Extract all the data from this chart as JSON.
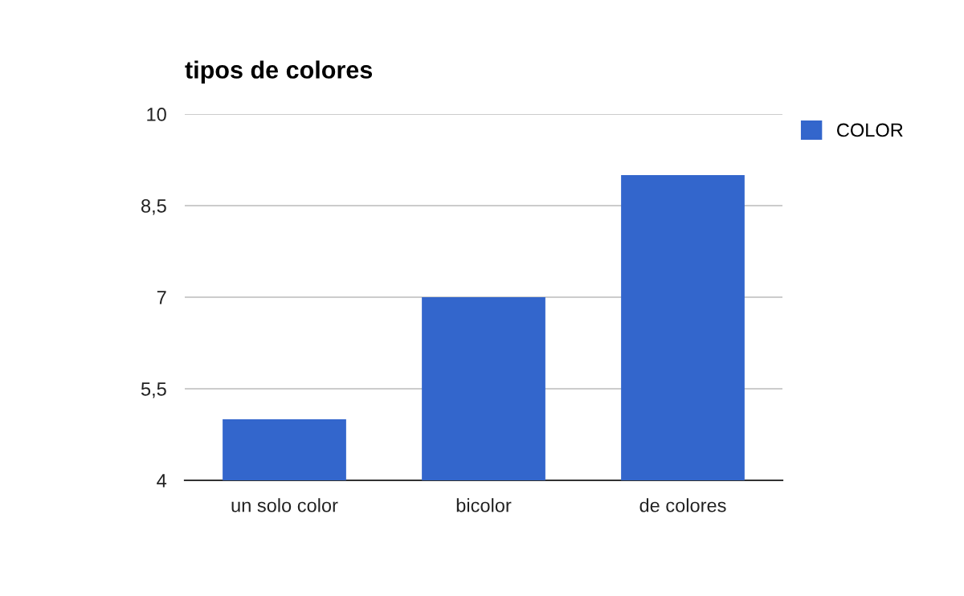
{
  "chart_data": {
    "type": "bar",
    "title": "tipos de colores",
    "categories": [
      "un solo color",
      "bicolor",
      "de colores"
    ],
    "series": [
      {
        "name": "COLOR",
        "color": "#3366cc",
        "values": [
          5,
          7,
          9
        ]
      }
    ],
    "ylim": [
      4,
      10
    ],
    "yticks": [
      4,
      {
        "value": 5.5,
        "label": "5,5"
      },
      7,
      {
        "value": 8.5,
        "label": "8,5"
      },
      10
    ],
    "grid": "y",
    "legend": "right"
  }
}
